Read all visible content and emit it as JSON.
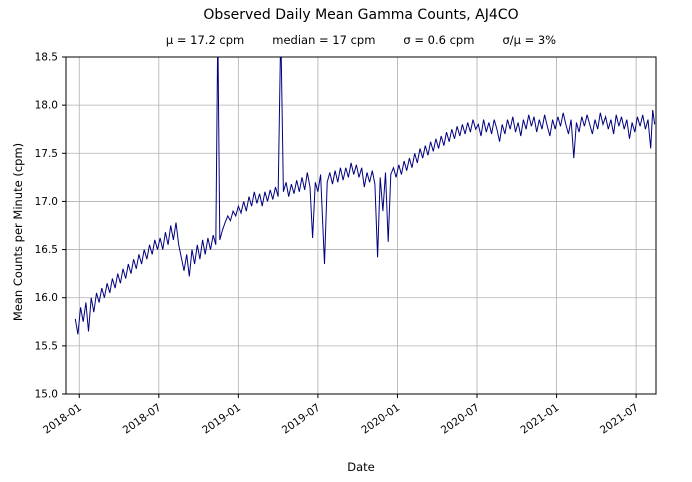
{
  "chart_data": {
    "type": "line",
    "title": "Observed Daily Mean Gamma Counts, AJ4CO",
    "stats": [
      "μ = 17.2 cpm",
      "median = 17 cpm",
      "σ = 0.6 cpm",
      "σ/μ = 3%"
    ],
    "xlabel": "Date",
    "ylabel": "Mean Counts per Minute (cpm)",
    "line_color": "#000080",
    "grid_color": "#b0b0b0",
    "grid": true,
    "x_unit": "months since 2018-01",
    "xlim": [
      -1,
      43.5
    ],
    "ylim": [
      15.0,
      18.5
    ],
    "x_ticks": [
      {
        "t": 0,
        "label": "2018-01"
      },
      {
        "t": 6,
        "label": "2018-07"
      },
      {
        "t": 12,
        "label": "2019-01"
      },
      {
        "t": 18,
        "label": "2019-07"
      },
      {
        "t": 24,
        "label": "2020-01"
      },
      {
        "t": 30,
        "label": "2020-07"
      },
      {
        "t": 36,
        "label": "2021-01"
      },
      {
        "t": 42,
        "label": "2021-07"
      }
    ],
    "y_ticks": [
      {
        "v": 15.0,
        "label": "15.0"
      },
      {
        "v": 15.5,
        "label": "15.5"
      },
      {
        "v": 16.0,
        "label": "16.0"
      },
      {
        "v": 16.5,
        "label": "16.5"
      },
      {
        "v": 17.0,
        "label": "17.0"
      },
      {
        "v": 17.5,
        "label": "17.5"
      },
      {
        "v": 18.0,
        "label": "18.0"
      },
      {
        "v": 18.5,
        "label": "18.5"
      }
    ],
    "points": [
      [
        -0.3,
        15.78
      ],
      [
        -0.1,
        15.62
      ],
      [
        0.1,
        15.9
      ],
      [
        0.3,
        15.75
      ],
      [
        0.5,
        15.95
      ],
      [
        0.7,
        15.65
      ],
      [
        0.9,
        16.0
      ],
      [
        1.1,
        15.85
      ],
      [
        1.3,
        16.05
      ],
      [
        1.5,
        15.95
      ],
      [
        1.7,
        16.1
      ],
      [
        1.9,
        16.0
      ],
      [
        2.1,
        16.15
      ],
      [
        2.3,
        16.05
      ],
      [
        2.5,
        16.2
      ],
      [
        2.7,
        16.1
      ],
      [
        2.9,
        16.25
      ],
      [
        3.1,
        16.15
      ],
      [
        3.3,
        16.3
      ],
      [
        3.5,
        16.2
      ],
      [
        3.7,
        16.35
      ],
      [
        3.9,
        16.25
      ],
      [
        4.1,
        16.4
      ],
      [
        4.3,
        16.3
      ],
      [
        4.5,
        16.45
      ],
      [
        4.7,
        16.35
      ],
      [
        4.9,
        16.5
      ],
      [
        5.1,
        16.4
      ],
      [
        5.3,
        16.55
      ],
      [
        5.5,
        16.45
      ],
      [
        5.7,
        16.6
      ],
      [
        5.9,
        16.5
      ],
      [
        6.1,
        16.62
      ],
      [
        6.3,
        16.5
      ],
      [
        6.5,
        16.68
      ],
      [
        6.7,
        16.55
      ],
      [
        6.9,
        16.75
      ],
      [
        7.1,
        16.6
      ],
      [
        7.3,
        16.78
      ],
      [
        7.5,
        16.55
      ],
      [
        7.7,
        16.42
      ],
      [
        7.9,
        16.28
      ],
      [
        8.1,
        16.45
      ],
      [
        8.3,
        16.22
      ],
      [
        8.5,
        16.5
      ],
      [
        8.7,
        16.35
      ],
      [
        8.9,
        16.55
      ],
      [
        9.1,
        16.4
      ],
      [
        9.3,
        16.6
      ],
      [
        9.5,
        16.45
      ],
      [
        9.7,
        16.62
      ],
      [
        9.9,
        16.5
      ],
      [
        10.1,
        16.65
      ],
      [
        10.3,
        16.55
      ],
      [
        10.45,
        18.8
      ],
      [
        10.6,
        16.6
      ],
      [
        10.8,
        16.7
      ],
      [
        11.0,
        16.78
      ],
      [
        11.2,
        16.85
      ],
      [
        11.4,
        16.8
      ],
      [
        11.6,
        16.9
      ],
      [
        11.8,
        16.85
      ],
      [
        12.0,
        16.95
      ],
      [
        12.2,
        16.88
      ],
      [
        12.4,
        17.0
      ],
      [
        12.6,
        16.9
      ],
      [
        12.8,
        17.05
      ],
      [
        13.0,
        16.95
      ],
      [
        13.2,
        17.1
      ],
      [
        13.4,
        16.98
      ],
      [
        13.6,
        17.08
      ],
      [
        13.8,
        16.95
      ],
      [
        14.0,
        17.1
      ],
      [
        14.2,
        17.0
      ],
      [
        14.4,
        17.12
      ],
      [
        14.6,
        17.02
      ],
      [
        14.8,
        17.15
      ],
      [
        15.0,
        17.05
      ],
      [
        15.2,
        18.8
      ],
      [
        15.4,
        17.1
      ],
      [
        15.6,
        17.2
      ],
      [
        15.8,
        17.05
      ],
      [
        16.0,
        17.18
      ],
      [
        16.2,
        17.08
      ],
      [
        16.4,
        17.22
      ],
      [
        16.6,
        17.1
      ],
      [
        16.8,
        17.25
      ],
      [
        17.0,
        17.12
      ],
      [
        17.2,
        17.3
      ],
      [
        17.4,
        17.15
      ],
      [
        17.6,
        16.62
      ],
      [
        17.8,
        17.2
      ],
      [
        18.0,
        17.1
      ],
      [
        18.2,
        17.28
      ],
      [
        18.5,
        16.35
      ],
      [
        18.7,
        17.2
      ],
      [
        18.9,
        17.3
      ],
      [
        19.1,
        17.18
      ],
      [
        19.3,
        17.32
      ],
      [
        19.5,
        17.2
      ],
      [
        19.7,
        17.35
      ],
      [
        19.9,
        17.22
      ],
      [
        20.1,
        17.35
      ],
      [
        20.3,
        17.25
      ],
      [
        20.5,
        17.4
      ],
      [
        20.7,
        17.28
      ],
      [
        20.9,
        17.38
      ],
      [
        21.1,
        17.25
      ],
      [
        21.3,
        17.35
      ],
      [
        21.5,
        17.15
      ],
      [
        21.7,
        17.3
      ],
      [
        21.9,
        17.2
      ],
      [
        22.1,
        17.32
      ],
      [
        22.3,
        17.18
      ],
      [
        22.5,
        16.42
      ],
      [
        22.7,
        17.25
      ],
      [
        22.9,
        16.9
      ],
      [
        23.1,
        17.3
      ],
      [
        23.3,
        16.58
      ],
      [
        23.5,
        17.28
      ],
      [
        23.7,
        17.35
      ],
      [
        23.9,
        17.25
      ],
      [
        24.1,
        17.38
      ],
      [
        24.3,
        17.28
      ],
      [
        24.5,
        17.42
      ],
      [
        24.7,
        17.32
      ],
      [
        24.9,
        17.45
      ],
      [
        25.1,
        17.35
      ],
      [
        25.3,
        17.5
      ],
      [
        25.5,
        17.4
      ],
      [
        25.7,
        17.55
      ],
      [
        25.9,
        17.45
      ],
      [
        26.1,
        17.58
      ],
      [
        26.3,
        17.48
      ],
      [
        26.5,
        17.62
      ],
      [
        26.7,
        17.52
      ],
      [
        26.9,
        17.65
      ],
      [
        27.1,
        17.55
      ],
      [
        27.3,
        17.68
      ],
      [
        27.5,
        17.58
      ],
      [
        27.7,
        17.72
      ],
      [
        27.9,
        17.62
      ],
      [
        28.1,
        17.75
      ],
      [
        28.3,
        17.65
      ],
      [
        28.5,
        17.78
      ],
      [
        28.7,
        17.68
      ],
      [
        28.9,
        17.8
      ],
      [
        29.1,
        17.7
      ],
      [
        29.3,
        17.82
      ],
      [
        29.5,
        17.72
      ],
      [
        29.7,
        17.85
      ],
      [
        29.9,
        17.75
      ],
      [
        30.1,
        17.8
      ],
      [
        30.3,
        17.68
      ],
      [
        30.5,
        17.85
      ],
      [
        30.7,
        17.72
      ],
      [
        30.9,
        17.82
      ],
      [
        31.1,
        17.7
      ],
      [
        31.3,
        17.85
      ],
      [
        31.5,
        17.75
      ],
      [
        31.7,
        17.62
      ],
      [
        31.9,
        17.8
      ],
      [
        32.1,
        17.7
      ],
      [
        32.3,
        17.85
      ],
      [
        32.5,
        17.75
      ],
      [
        32.7,
        17.88
      ],
      [
        32.9,
        17.72
      ],
      [
        33.1,
        17.82
      ],
      [
        33.3,
        17.68
      ],
      [
        33.5,
        17.85
      ],
      [
        33.7,
        17.75
      ],
      [
        33.9,
        17.9
      ],
      [
        34.1,
        17.78
      ],
      [
        34.3,
        17.88
      ],
      [
        34.5,
        17.72
      ],
      [
        34.7,
        17.85
      ],
      [
        34.9,
        17.75
      ],
      [
        35.1,
        17.9
      ],
      [
        35.3,
        17.78
      ],
      [
        35.5,
        17.68
      ],
      [
        35.7,
        17.85
      ],
      [
        35.9,
        17.75
      ],
      [
        36.1,
        17.88
      ],
      [
        36.3,
        17.78
      ],
      [
        36.5,
        17.92
      ],
      [
        36.7,
        17.8
      ],
      [
        36.9,
        17.7
      ],
      [
        37.1,
        17.85
      ],
      [
        37.3,
        17.45
      ],
      [
        37.5,
        17.82
      ],
      [
        37.7,
        17.72
      ],
      [
        37.9,
        17.88
      ],
      [
        38.1,
        17.78
      ],
      [
        38.3,
        17.9
      ],
      [
        38.5,
        17.8
      ],
      [
        38.7,
        17.7
      ],
      [
        38.9,
        17.85
      ],
      [
        39.1,
        17.75
      ],
      [
        39.3,
        17.92
      ],
      [
        39.5,
        17.8
      ],
      [
        39.7,
        17.88
      ],
      [
        39.9,
        17.75
      ],
      [
        40.1,
        17.85
      ],
      [
        40.3,
        17.7
      ],
      [
        40.5,
        17.9
      ],
      [
        40.7,
        17.78
      ],
      [
        40.9,
        17.88
      ],
      [
        41.1,
        17.75
      ],
      [
        41.3,
        17.85
      ],
      [
        41.5,
        17.65
      ],
      [
        41.7,
        17.82
      ],
      [
        41.9,
        17.72
      ],
      [
        42.1,
        17.88
      ],
      [
        42.3,
        17.78
      ],
      [
        42.5,
        17.9
      ],
      [
        42.7,
        17.75
      ],
      [
        42.9,
        17.85
      ],
      [
        43.1,
        17.55
      ],
      [
        43.25,
        17.95
      ],
      [
        43.4,
        17.8
      ]
    ]
  }
}
